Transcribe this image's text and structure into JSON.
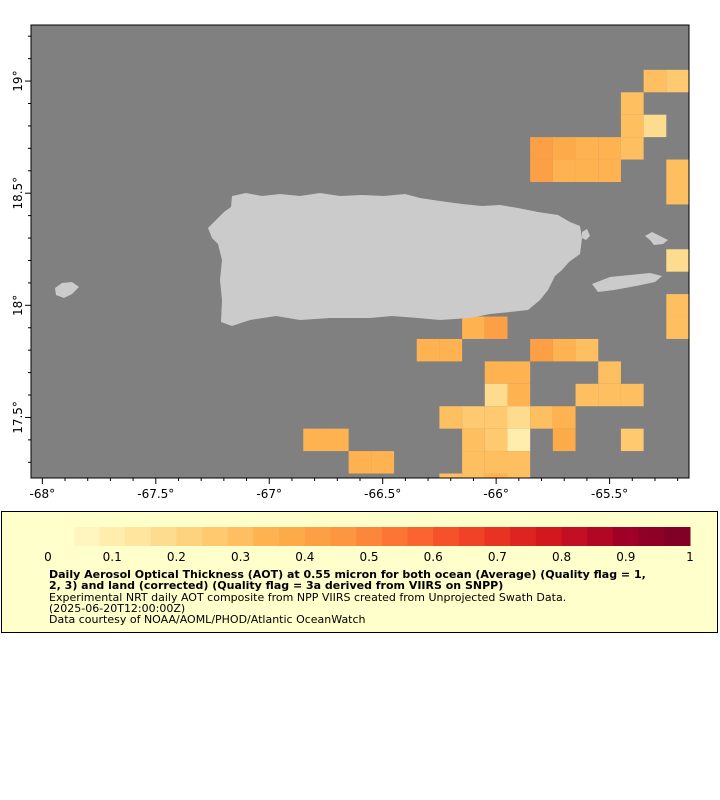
{
  "colors": {
    "ocean": "#808080",
    "land": "#cbcbcb",
    "panel_bg": "#ffffcc",
    "colorbar": [
      "#ffffcc",
      "#fff5bf",
      "#ffedad",
      "#ffe59e",
      "#fedc8f",
      "#fed380",
      "#fec96f",
      "#febf60",
      "#feb350",
      "#fdaa48",
      "#fda045",
      "#fd9640",
      "#fc873b",
      "#fc7535",
      "#fa6430",
      "#f5522b",
      "#f04226",
      "#e83222",
      "#dd2420",
      "#d2171f",
      "#c30f23",
      "#b20625",
      "#a00026",
      "#8f0026",
      "#800026"
    ]
  },
  "map": {
    "lat_ticks": [
      "17.5°",
      "18°",
      "18.5°",
      "19°"
    ],
    "lon_ticks": [
      "-68°",
      "-67.5°",
      "-67°",
      "-66.5°",
      "-66°",
      "-65.5°"
    ],
    "lon_range": [
      -68.05,
      -65.15
    ],
    "lat_range": [
      17.23,
      19.25
    ],
    "aot_cells": [
      {
        "lon": -65.3,
        "lat": 19.0,
        "v": 0.3
      },
      {
        "lon": -65.2,
        "lat": 19.0,
        "v": 0.26
      },
      {
        "lon": -65.4,
        "lat": 18.9,
        "v": 0.3
      },
      {
        "lon": -65.4,
        "lat": 18.8,
        "v": 0.3
      },
      {
        "lon": -65.3,
        "lat": 18.8,
        "v": 0.18
      },
      {
        "lon": -65.8,
        "lat": 18.7,
        "v": 0.43
      },
      {
        "lon": -65.7,
        "lat": 18.7,
        "v": 0.37
      },
      {
        "lon": -65.6,
        "lat": 18.7,
        "v": 0.33
      },
      {
        "lon": -65.5,
        "lat": 18.7,
        "v": 0.33
      },
      {
        "lon": -65.4,
        "lat": 18.7,
        "v": 0.3
      },
      {
        "lon": -65.8,
        "lat": 18.6,
        "v": 0.43
      },
      {
        "lon": -65.7,
        "lat": 18.6,
        "v": 0.35
      },
      {
        "lon": -65.6,
        "lat": 18.6,
        "v": 0.33
      },
      {
        "lon": -65.5,
        "lat": 18.6,
        "v": 0.33
      },
      {
        "lon": -65.2,
        "lat": 18.6,
        "v": 0.3
      },
      {
        "lon": -65.2,
        "lat": 18.5,
        "v": 0.3
      },
      {
        "lon": -65.2,
        "lat": 18.2,
        "v": 0.18
      },
      {
        "lon": -65.2,
        "lat": 18.0,
        "v": 0.3
      },
      {
        "lon": -65.2,
        "lat": 17.9,
        "v": 0.3
      },
      {
        "lon": -66.1,
        "lat": 17.9,
        "v": 0.35
      },
      {
        "lon": -66.0,
        "lat": 17.9,
        "v": 0.43
      },
      {
        "lon": -66.3,
        "lat": 17.8,
        "v": 0.35
      },
      {
        "lon": -66.2,
        "lat": 17.8,
        "v": 0.35
      },
      {
        "lon": -65.8,
        "lat": 17.8,
        "v": 0.43
      },
      {
        "lon": -65.7,
        "lat": 17.8,
        "v": 0.35
      },
      {
        "lon": -65.6,
        "lat": 17.8,
        "v": 0.3
      },
      {
        "lon": -66.0,
        "lat": 17.7,
        "v": 0.33
      },
      {
        "lon": -65.9,
        "lat": 17.7,
        "v": 0.33
      },
      {
        "lon": -65.5,
        "lat": 17.7,
        "v": 0.3
      },
      {
        "lon": -66.0,
        "lat": 17.6,
        "v": 0.18
      },
      {
        "lon": -65.9,
        "lat": 17.6,
        "v": 0.35
      },
      {
        "lon": -65.6,
        "lat": 17.6,
        "v": 0.3
      },
      {
        "lon": -65.5,
        "lat": 17.6,
        "v": 0.3
      },
      {
        "lon": -65.4,
        "lat": 17.6,
        "v": 0.3
      },
      {
        "lon": -66.2,
        "lat": 17.5,
        "v": 0.3
      },
      {
        "lon": -66.1,
        "lat": 17.5,
        "v": 0.27
      },
      {
        "lon": -66.0,
        "lat": 17.5,
        "v": 0.27
      },
      {
        "lon": -65.9,
        "lat": 17.5,
        "v": 0.18
      },
      {
        "lon": -65.8,
        "lat": 17.5,
        "v": 0.3
      },
      {
        "lon": -65.7,
        "lat": 17.5,
        "v": 0.33
      },
      {
        "lon": -66.1,
        "lat": 17.4,
        "v": 0.3
      },
      {
        "lon": -66.0,
        "lat": 17.4,
        "v": 0.27
      },
      {
        "lon": -65.9,
        "lat": 17.4,
        "v": 0.1
      },
      {
        "lon": -65.7,
        "lat": 17.4,
        "v": 0.38
      },
      {
        "lon": -65.4,
        "lat": 17.4,
        "v": 0.26
      },
      {
        "lon": -66.8,
        "lat": 17.4,
        "v": 0.35
      },
      {
        "lon": -66.7,
        "lat": 17.4,
        "v": 0.35
      },
      {
        "lon": -66.1,
        "lat": 17.3,
        "v": 0.3
      },
      {
        "lon": -66.0,
        "lat": 17.3,
        "v": 0.3
      },
      {
        "lon": -65.9,
        "lat": 17.3,
        "v": 0.3
      },
      {
        "lon": -66.6,
        "lat": 17.3,
        "v": 0.35
      },
      {
        "lon": -66.5,
        "lat": 17.3,
        "v": 0.35
      },
      {
        "lon": -66.2,
        "lat": 17.2,
        "v": 0.3
      },
      {
        "lon": -66.1,
        "lat": 17.2,
        "v": 0.3
      },
      {
        "lon": -66.0,
        "lat": 17.2,
        "v": 0.33
      },
      {
        "lon": -65.9,
        "lat": 17.2,
        "v": 0.3
      }
    ]
  },
  "legend": {
    "tick_labels": [
      "0",
      "0.1",
      "0.2",
      "0.3",
      "0.4",
      "0.5",
      "0.6",
      "0.7",
      "0.8",
      "0.9",
      "1"
    ],
    "title": "Daily Aerosol Optical Thickness (AOT) at 0.55 micron for both ocean (Average) (Quality flag = 1,\n2, 3) and land (corrected) (Quality flag = 3a derived from VIIRS on SNPP)",
    "line1": "Experimental NRT daily AOT composite from NPP VIIRS created from Unprojected Swath Data.",
    "line2": "(2025-06-20T12:00:00Z)",
    "line3": "Data courtesy of NOAA/AOML/PHOD/Atlantic OceanWatch"
  }
}
